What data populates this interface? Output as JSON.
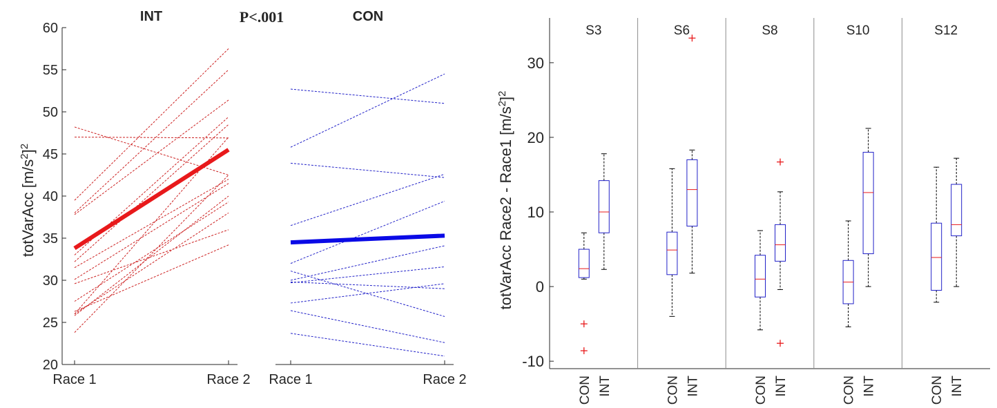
{
  "chart_data": [
    {
      "type": "line",
      "title": "INT",
      "ylabel": "totVarAcc [m/s²]²",
      "ylim": [
        20,
        60
      ],
      "yticks": [
        20,
        25,
        30,
        35,
        40,
        45,
        50,
        55,
        60
      ],
      "categories": [
        "Race 1",
        "Race 2"
      ],
      "mean_color": "#e8191b",
      "line_color": "#cc2020",
      "mean": [
        33.8,
        45.5
      ],
      "lines": [
        [
          48.2,
          42.5
        ],
        [
          47.0,
          46.9
        ],
        [
          39.5,
          57.5
        ],
        [
          38.0,
          55.0
        ],
        [
          37.8,
          51.4
        ],
        [
          33.0,
          49.4
        ],
        [
          32.2,
          48.5
        ],
        [
          31.5,
          42.0
        ],
        [
          30.1,
          41.5
        ],
        [
          29.6,
          36.0
        ],
        [
          27.5,
          39.3
        ],
        [
          26.3,
          34.2
        ],
        [
          26.0,
          47.0
        ],
        [
          26.0,
          38.0
        ],
        [
          25.8,
          40.0
        ],
        [
          23.8,
          42.5
        ]
      ]
    },
    {
      "type": "line",
      "title": "CON",
      "ylim": [
        20,
        60
      ],
      "categories": [
        "Race 1",
        "Race 2"
      ],
      "mean_color": "#0a0ae6",
      "line_color": "#2020c8",
      "mean": [
        34.5,
        35.3
      ],
      "lines": [
        [
          52.7,
          51.0
        ],
        [
          45.8,
          54.5
        ],
        [
          43.9,
          42.2
        ],
        [
          36.5,
          42.6
        ],
        [
          32.0,
          39.4
        ],
        [
          31.1,
          25.7
        ],
        [
          30.0,
          34.1
        ],
        [
          29.8,
          29.0
        ],
        [
          29.7,
          31.6
        ],
        [
          27.3,
          29.6
        ],
        [
          26.4,
          22.6
        ],
        [
          23.7,
          21.0
        ]
      ]
    },
    {
      "type": "box",
      "ylabel": "totVarAcc Race2 - Race1 [m/s²]²",
      "ylim": [
        -11,
        36
      ],
      "yticks": [
        -10,
        0,
        10,
        20,
        30
      ],
      "groups": [
        "S3",
        "S6",
        "S8",
        "S10",
        "S12"
      ],
      "categories": [
        "CON",
        "INT"
      ],
      "box_color": "#2020c8",
      "median_color": "#e8191b",
      "outlier_color": "#e8191b",
      "boxes": [
        {
          "group": "S3",
          "category": "CON",
          "whisker_low": 1.0,
          "q1": 1.2,
          "median": 2.4,
          "q3": 5.0,
          "whisker_high": 7.2,
          "outliers": [
            -5.0,
            -8.6
          ]
        },
        {
          "group": "S3",
          "category": "INT",
          "whisker_low": 2.3,
          "q1": 7.2,
          "median": 10.0,
          "q3": 14.2,
          "whisker_high": 17.8,
          "outliers": []
        },
        {
          "group": "S6",
          "category": "CON",
          "whisker_low": -4.0,
          "q1": 1.6,
          "median": 4.9,
          "q3": 7.3,
          "whisker_high": 15.8,
          "outliers": []
        },
        {
          "group": "S6",
          "category": "INT",
          "whisker_low": 1.8,
          "q1": 8.1,
          "median": 13.0,
          "q3": 17.0,
          "whisker_high": 18.3,
          "outliers": [
            33.3
          ]
        },
        {
          "group": "S8",
          "category": "CON",
          "whisker_low": -5.8,
          "q1": -1.4,
          "median": 1.0,
          "q3": 4.2,
          "whisker_high": 7.5,
          "outliers": []
        },
        {
          "group": "S8",
          "category": "INT",
          "whisker_low": -0.4,
          "q1": 3.4,
          "median": 5.6,
          "q3": 8.3,
          "whisker_high": 12.7,
          "outliers": [
            16.7,
            -7.6
          ]
        },
        {
          "group": "S10",
          "category": "CON",
          "whisker_low": -5.4,
          "q1": -2.3,
          "median": 0.6,
          "q3": 3.5,
          "whisker_high": 8.8,
          "outliers": []
        },
        {
          "group": "S10",
          "category": "INT",
          "whisker_low": 0.0,
          "q1": 4.4,
          "median": 12.6,
          "q3": 18.0,
          "whisker_high": 21.2,
          "outliers": []
        },
        {
          "group": "S12",
          "category": "CON",
          "whisker_low": -2.1,
          "q1": -0.5,
          "median": 3.9,
          "q3": 8.5,
          "whisker_high": 16.0,
          "outliers": []
        },
        {
          "group": "S12",
          "category": "INT",
          "whisker_low": 0.0,
          "q1": 6.8,
          "median": 8.3,
          "q3": 13.7,
          "whisker_high": 17.2,
          "outliers": []
        }
      ]
    }
  ],
  "annotations": {
    "p_value": "P<.001"
  },
  "colors": {
    "axis": "#262626",
    "separator": "#8c8c8c"
  }
}
